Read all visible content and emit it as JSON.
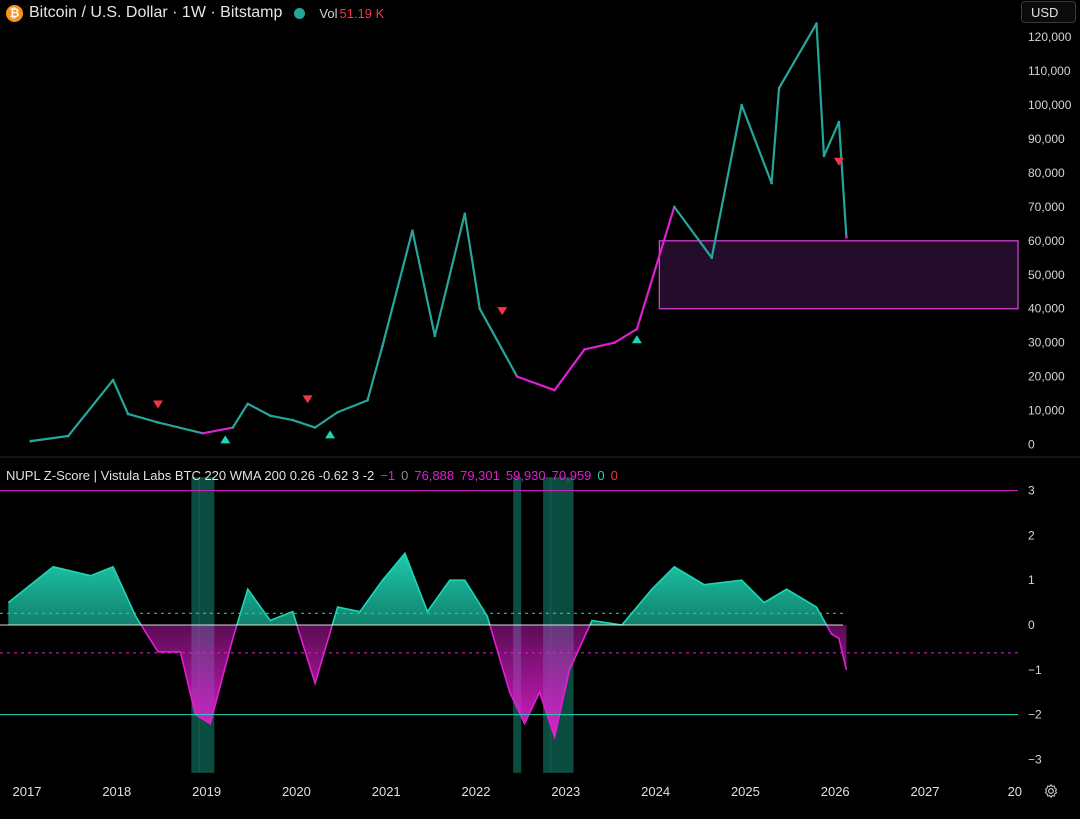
{
  "header": {
    "symbol_icon": "bitcoin-icon",
    "title": "Bitcoin / U.S. Dollar · 1W · Bitstamp",
    "volume_label": "Vol",
    "volume_value": "51.19 K"
  },
  "currency_button": "USD",
  "indicator": {
    "title": "NUPL Z-Score | Vistula Labs BTC 220 WMA 200 0.26 -0.62 3 -2",
    "values": [
      "−1",
      "0",
      "76,888",
      "79,301",
      "59,930",
      "70,959",
      "0",
      "0"
    ]
  },
  "colors": {
    "up": "#26a69a",
    "down": "#f23645",
    "bull": "#1dd6b4",
    "bear": "#e21ed2",
    "zone_border": "#d040d0",
    "zone_fill": "#2a0f33",
    "muted": "#8c8c8c"
  },
  "chart_data": [
    {
      "type": "line",
      "title": "Bitcoin / U.S. Dollar · 1W · Bitstamp",
      "yaxis_ticks": [
        "120,000",
        "110,000",
        "100,000",
        "90,000",
        "80,000",
        "70,000",
        "60,000",
        "50,000",
        "40,000",
        "30,000",
        "20,000",
        "10,000",
        "0"
      ],
      "ylim": [
        0,
        125000
      ],
      "x": [
        "2017-01",
        "2017-06",
        "2017-12",
        "2018-02",
        "2018-06",
        "2018-12",
        "2019-04",
        "2019-06",
        "2019-09",
        "2019-12",
        "2020-03",
        "2020-06",
        "2020-10",
        "2020-12",
        "2021-04",
        "2021-07",
        "2021-11",
        "2022-01",
        "2022-06",
        "2022-11",
        "2023-03",
        "2023-07",
        "2023-10",
        "2024-03",
        "2024-08",
        "2024-12",
        "2025-04",
        "2025-05",
        "2025-10",
        "2025-11",
        "2026-01",
        "2026-02"
      ],
      "y": [
        1000,
        2500,
        19000,
        9000,
        6500,
        3300,
        5000,
        12000,
        8500,
        7200,
        5000,
        9500,
        13000,
        29000,
        63000,
        32000,
        68000,
        40000,
        20000,
        16000,
        28000,
        30000,
        34000,
        70000,
        55000,
        100000,
        77000,
        105000,
        124000,
        85000,
        95000,
        61000
      ],
      "series": [
        {
          "name": "",
          "regime": [
            {
              "from": "2017-01",
              "to": "2018-06",
              "state": "bull"
            },
            {
              "from": "2018-06",
              "to": "2019-03",
              "state": "bear"
            },
            {
              "from": "2019-03",
              "to": "2020-03",
              "state": "bull"
            },
            {
              "from": "2020-03",
              "to": "2020-05",
              "state": "bear"
            },
            {
              "from": "2020-05",
              "to": "2022-05",
              "state": "bull"
            },
            {
              "from": "2022-05",
              "to": "2023-10",
              "state": "bear"
            },
            {
              "from": "2023-10",
              "to": "2026-01",
              "state": "bull"
            },
            {
              "from": "2026-01",
              "to": "2026-02",
              "state": "bear"
            }
          ]
        }
      ],
      "signals": [
        {
          "date": "2018-06",
          "kind": "sell",
          "price": 11500
        },
        {
          "date": "2019-03",
          "kind": "buy",
          "price": 1500
        },
        {
          "date": "2020-02",
          "kind": "sell",
          "price": 13000
        },
        {
          "date": "2020-05",
          "kind": "buy",
          "price": 3000
        },
        {
          "date": "2022-04",
          "kind": "sell",
          "price": 39000
        },
        {
          "date": "2023-10",
          "kind": "buy",
          "price": 31000
        },
        {
          "date": "2026-01",
          "kind": "sell",
          "price": 83000
        }
      ],
      "zone": {
        "from": "2024-01",
        "y_low": 40000,
        "y_high": 60000
      }
    },
    {
      "type": "area",
      "title": "NUPL Z-Score | Vistula Labs BTC 220 WMA 200 0.26 -0.62 3 -2",
      "yaxis_ticks": [
        "3",
        "2",
        "1",
        "0",
        "−1",
        "−2",
        "−3"
      ],
      "ylim": [
        -3.3,
        3.3
      ],
      "x_ticks": [
        "2017",
        "2018",
        "2019",
        "2020",
        "2021",
        "2022",
        "2023",
        "2024",
        "2025",
        "2026",
        "2027",
        "20"
      ],
      "x": [
        "2016-10",
        "2017-04",
        "2017-09",
        "2017-12",
        "2018-03",
        "2018-06",
        "2018-09",
        "2018-11",
        "2019-01",
        "2019-04",
        "2019-06",
        "2019-09",
        "2019-12",
        "2020-03",
        "2020-06",
        "2020-09",
        "2020-12",
        "2021-03",
        "2021-06",
        "2021-09",
        "2021-11",
        "2022-02",
        "2022-05",
        "2022-07",
        "2022-09",
        "2022-11",
        "2023-01",
        "2023-04",
        "2023-08",
        "2023-12",
        "2024-03",
        "2024-07",
        "2024-12",
        "2025-03",
        "2025-06",
        "2025-10",
        "2025-12",
        "2026-01",
        "2026-02"
      ],
      "y": [
        0.5,
        1.3,
        1.1,
        1.3,
        0.2,
        -0.6,
        -0.6,
        -2.0,
        -2.2,
        -0.3,
        0.8,
        0.1,
        0.3,
        -1.3,
        0.4,
        0.3,
        1.0,
        1.6,
        0.3,
        1.0,
        1.0,
        0.2,
        -1.5,
        -2.2,
        -1.5,
        -2.5,
        -1.0,
        0.1,
        0.0,
        0.8,
        1.3,
        0.9,
        1.0,
        0.5,
        0.8,
        0.4,
        -0.2,
        -0.3,
        -1.0
      ],
      "reference_lines": [
        {
          "y": 3,
          "color": "#e21ed2",
          "style": "solid"
        },
        {
          "y": 0.26,
          "color": "#1dd6b4",
          "style": "dashed"
        },
        {
          "y": 0,
          "color": "#ffffff",
          "style": "solid"
        },
        {
          "y": -0.62,
          "color": "#e21ed2",
          "style": "dashed"
        },
        {
          "y": -2,
          "color": "#1dd6b4",
          "style": "solid"
        }
      ],
      "highlight_periods": [
        [
          "2018-11",
          "2018-11"
        ],
        [
          "2018-12",
          "2019-01"
        ],
        [
          "2022-06",
          "2022-06"
        ],
        [
          "2022-10",
          "2022-10"
        ],
        [
          "2022-11",
          "2023-01"
        ]
      ]
    }
  ]
}
